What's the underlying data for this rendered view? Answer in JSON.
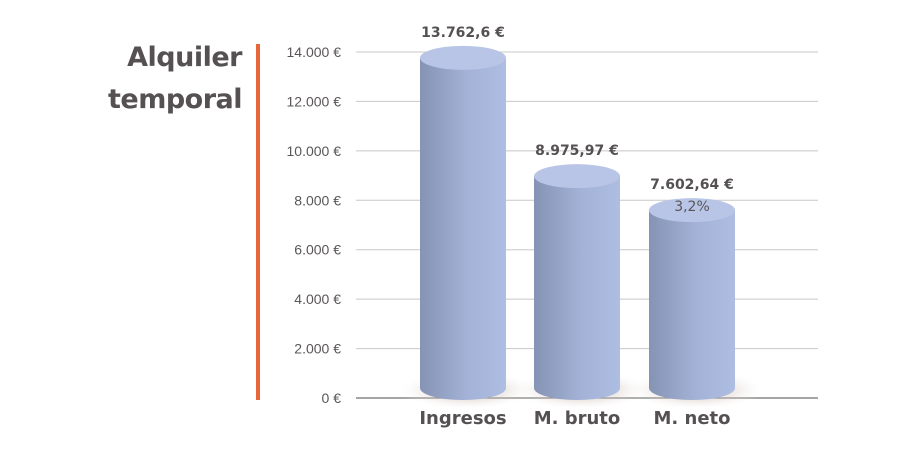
{
  "colors": {
    "accent": "#e8673a",
    "cylinder_light": "#a9b8dc",
    "cylinder_dark": "#8593b4",
    "cylinder_top": "#b8c5e6",
    "grid": "#c8c8c8",
    "text": "#555152"
  },
  "chart_data": {
    "type": "bar",
    "title": "Alquiler temporal",
    "title_lines": [
      "Alquiler",
      "temporal"
    ],
    "categories": [
      "Ingresos",
      "M. bruto",
      "M. neto"
    ],
    "values": [
      13762.6,
      8975.97,
      7602.64
    ],
    "value_labels": [
      "13.762,6 €",
      "8.975,97 €",
      "7.602,64 €"
    ],
    "annotations": [
      {
        "category": "M. neto",
        "text": "3,2%"
      }
    ],
    "ylim": [
      0,
      14000
    ],
    "yticks": [
      0,
      2000,
      4000,
      6000,
      8000,
      10000,
      12000,
      14000
    ],
    "ytick_labels": [
      "0 €",
      "2.000 €",
      "4.000 €",
      "6.000 €",
      "8.000 €",
      "10.000 €",
      "12.000 €",
      "14.000 €"
    ],
    "grid": true,
    "xlabel": "",
    "ylabel": ""
  }
}
